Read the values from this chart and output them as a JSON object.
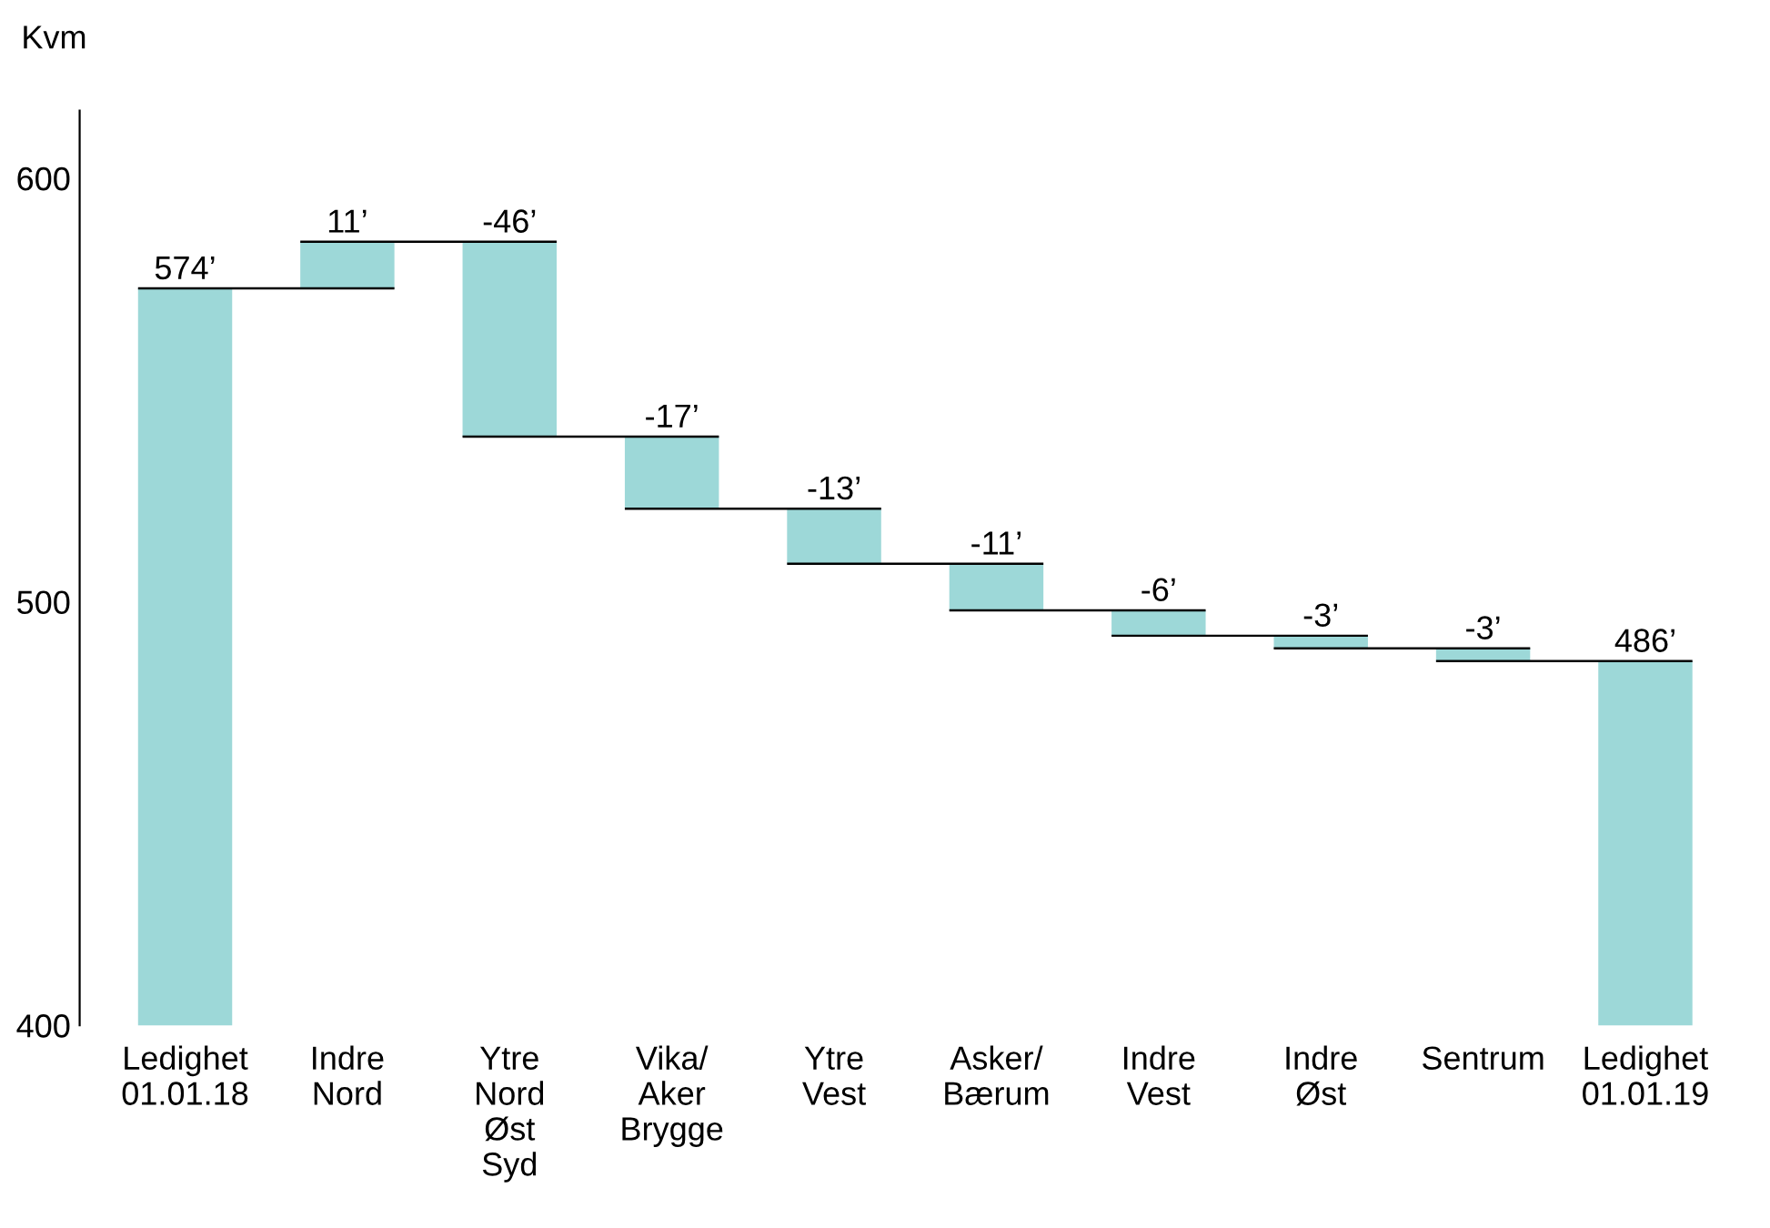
{
  "chart_data": {
    "type": "bar",
    "ylabel": "Kvm",
    "categories": [
      "Ledighet\n01.01.18",
      "Indre\nNord",
      "Ytre\nNord\nØst\nSyd",
      "Vika/\nAker\nBrygge",
      "Ytre\nVest",
      "Asker/\nBærum",
      "Indre\nVest",
      "Indre\nØst",
      "Sentrum",
      "Ledighet\n01.01.19"
    ],
    "values": [
      574,
      11,
      -46,
      -17,
      -13,
      -11,
      -6,
      -3,
      -3,
      486
    ],
    "base": [
      0,
      574,
      585,
      539,
      522,
      509,
      498,
      492,
      489,
      0
    ],
    "value_labels": [
      "574’",
      "11’",
      "-46’",
      "-17’",
      "-13’",
      "-11’",
      "-6’",
      "-3’",
      "-3’",
      "486’"
    ],
    "color": "#9dd8d8",
    "ylim": [
      400,
      616
    ],
    "yticks": [
      400,
      500,
      600
    ],
    "grid": false
  }
}
